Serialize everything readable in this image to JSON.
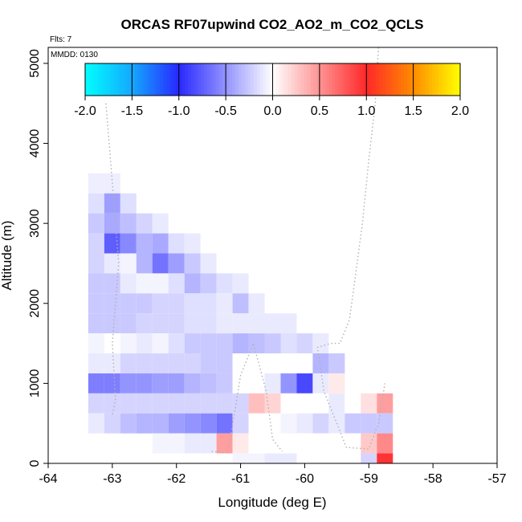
{
  "chart_data": {
    "type": "heatmap",
    "title": "ORCAS RF07upwind CO2_AO2_m_CO2_QCLS",
    "flights_label": "Flts: 7",
    "mmdd_label": "MMDD: 0130",
    "xlabel": "Longitude (deg E)",
    "ylabel": "Altitude (m)",
    "xlim": [
      -64,
      -57
    ],
    "ylim": [
      0,
      5200
    ],
    "x_ticks": [
      -64,
      -63,
      -62,
      -61,
      -60,
      -59,
      -58,
      -57
    ],
    "x_tick_labels": [
      "-64",
      "-63",
      "-62",
      "-61",
      "-60",
      "-59",
      "-58",
      "-57"
    ],
    "y_ticks": [
      0,
      1000,
      2000,
      3000,
      4000,
      5000
    ],
    "y_tick_labels": [
      "0",
      "1000",
      "2000",
      "3000",
      "4000",
      "5000"
    ],
    "cell_size": {
      "dlon": 0.25,
      "dalt": 250
    },
    "colorbar": {
      "min": -2.0,
      "max": 2.0,
      "ticks": [
        -2.0,
        -1.5,
        -1.0,
        -0.5,
        0.0,
        0.5,
        1.0,
        1.5,
        2.0
      ],
      "tick_labels": [
        "-2.0",
        "-1.5",
        "-1.0",
        "-0.5",
        "0.0",
        "0.5",
        "1.0",
        "1.5",
        "2.0"
      ],
      "stops": [
        {
          "v": -2.0,
          "c": "#00ffff"
        },
        {
          "v": -1.5,
          "c": "#14a8ff"
        },
        {
          "v": -1.0,
          "c": "#2828ff"
        },
        {
          "v": 0.0,
          "c": "#ffffff"
        },
        {
          "v": 1.0,
          "c": "#ff2828"
        },
        {
          "v": 1.5,
          "c": "#ff8c00"
        },
        {
          "v": 2.0,
          "c": "#ffff00"
        }
      ]
    },
    "cells": [
      [
        -63.25,
        3500,
        -0.08
      ],
      [
        -63.0,
        3500,
        -0.08
      ],
      [
        -63.25,
        3250,
        -0.15
      ],
      [
        -63.0,
        3250,
        -0.45
      ],
      [
        -62.75,
        3250,
        -0.15
      ],
      [
        -63.25,
        3000,
        -0.25
      ],
      [
        -63.0,
        3000,
        -0.4
      ],
      [
        -62.75,
        3000,
        -0.3
      ],
      [
        -62.5,
        3000,
        -0.2
      ],
      [
        -62.25,
        3000,
        -0.1
      ],
      [
        -63.25,
        2750,
        -0.2
      ],
      [
        -63.0,
        2750,
        -0.75
      ],
      [
        -62.75,
        2750,
        -0.55
      ],
      [
        -62.5,
        2750,
        -0.35
      ],
      [
        -62.25,
        2750,
        -0.4
      ],
      [
        -62.0,
        2750,
        -0.15
      ],
      [
        -61.75,
        2750,
        -0.1
      ],
      [
        -63.25,
        2500,
        -0.2
      ],
      [
        -63.0,
        2500,
        -0.1
      ],
      [
        -62.75,
        2500,
        -0.05
      ],
      [
        -62.5,
        2500,
        -0.35
      ],
      [
        -62.25,
        2500,
        -0.65
      ],
      [
        -62.0,
        2500,
        -0.45
      ],
      [
        -61.75,
        2500,
        -0.25
      ],
      [
        -61.5,
        2500,
        -0.1
      ],
      [
        -63.25,
        2250,
        -0.25
      ],
      [
        -63.0,
        2250,
        -0.25
      ],
      [
        -62.75,
        2250,
        -0.1
      ],
      [
        -62.5,
        2250,
        -0.05
      ],
      [
        -62.25,
        2250,
        -0.05
      ],
      [
        -62.0,
        2250,
        -0.15
      ],
      [
        -61.75,
        2250,
        -0.35
      ],
      [
        -61.5,
        2250,
        -0.25
      ],
      [
        -61.25,
        2250,
        -0.15
      ],
      [
        -61.0,
        2250,
        -0.1
      ],
      [
        -63.25,
        2000,
        -0.25
      ],
      [
        -63.0,
        2000,
        -0.25
      ],
      [
        -62.75,
        2000,
        -0.25
      ],
      [
        -62.5,
        2000,
        -0.25
      ],
      [
        -62.25,
        2000,
        -0.2
      ],
      [
        -62.0,
        2000,
        -0.2
      ],
      [
        -61.75,
        2000,
        -0.15
      ],
      [
        -61.5,
        2000,
        -0.15
      ],
      [
        -61.25,
        2000,
        -0.1
      ],
      [
        -61.0,
        2000,
        -0.3
      ],
      [
        -60.75,
        2000,
        -0.1
      ],
      [
        -63.25,
        1750,
        -0.25
      ],
      [
        -63.0,
        1750,
        -0.25
      ],
      [
        -62.75,
        1750,
        -0.25
      ],
      [
        -62.5,
        1750,
        -0.2
      ],
      [
        -62.25,
        1750,
        -0.2
      ],
      [
        -62.0,
        1750,
        -0.2
      ],
      [
        -61.75,
        1750,
        -0.15
      ],
      [
        -61.5,
        1750,
        -0.15
      ],
      [
        -61.25,
        1750,
        -0.1
      ],
      [
        -61.0,
        1750,
        -0.1
      ],
      [
        -60.75,
        1750,
        -0.1
      ],
      [
        -60.5,
        1750,
        -0.1
      ],
      [
        -60.25,
        1750,
        -0.1
      ],
      [
        -63.25,
        1500,
        -0.05
      ],
      [
        -63.0,
        1500,
        0.0
      ],
      [
        -62.75,
        1500,
        -0.05
      ],
      [
        -62.5,
        1500,
        -0.1
      ],
      [
        -62.25,
        1500,
        -0.05
      ],
      [
        -62.0,
        1500,
        -0.15
      ],
      [
        -61.75,
        1500,
        -0.25
      ],
      [
        -61.5,
        1500,
        -0.25
      ],
      [
        -61.25,
        1500,
        -0.25
      ],
      [
        -61.0,
        1500,
        -0.35
      ],
      [
        -60.75,
        1500,
        -0.3
      ],
      [
        -60.5,
        1500,
        -0.25
      ],
      [
        -60.25,
        1500,
        -0.15
      ],
      [
        -60.0,
        1500,
        -0.2
      ],
      [
        -59.75,
        1500,
        -0.1
      ],
      [
        -63.25,
        1250,
        -0.1
      ],
      [
        -63.0,
        1250,
        -0.1
      ],
      [
        -62.75,
        1250,
        -0.2
      ],
      [
        -62.5,
        1250,
        -0.2
      ],
      [
        -62.25,
        1250,
        -0.2
      ],
      [
        -62.0,
        1250,
        -0.2
      ],
      [
        -61.75,
        1250,
        -0.2
      ],
      [
        -61.5,
        1250,
        -0.25
      ],
      [
        -61.25,
        1250,
        -0.25
      ],
      [
        -61.0,
        1250,
        0.0
      ],
      [
        -60.75,
        1250,
        0.0
      ],
      [
        -60.5,
        1250,
        0.0
      ],
      [
        -60.25,
        1250,
        0.0
      ],
      [
        -60.0,
        1250,
        0.0
      ],
      [
        -59.75,
        1250,
        -0.35
      ],
      [
        -59.5,
        1250,
        -0.25
      ],
      [
        -63.25,
        1000,
        -0.6
      ],
      [
        -63.0,
        1000,
        -0.6
      ],
      [
        -62.75,
        1000,
        -0.5
      ],
      [
        -62.5,
        1000,
        -0.5
      ],
      [
        -62.25,
        1000,
        -0.45
      ],
      [
        -62.0,
        1000,
        -0.45
      ],
      [
        -61.75,
        1000,
        -0.35
      ],
      [
        -61.5,
        1000,
        -0.3
      ],
      [
        -61.25,
        1000,
        -0.25
      ],
      [
        -61.0,
        1000,
        0.0
      ],
      [
        -60.75,
        1000,
        0.0
      ],
      [
        -60.5,
        1000,
        -0.1
      ],
      [
        -60.25,
        1000,
        -0.5
      ],
      [
        -60.0,
        1000,
        -0.85
      ],
      [
        -59.75,
        1000,
        -0.1
      ],
      [
        -59.5,
        1000,
        0.1
      ],
      [
        -63.25,
        750,
        -0.2
      ],
      [
        -63.0,
        750,
        -0.2
      ],
      [
        -62.75,
        750,
        -0.2
      ],
      [
        -62.5,
        750,
        -0.2
      ],
      [
        -62.25,
        750,
        -0.2
      ],
      [
        -62.0,
        750,
        -0.2
      ],
      [
        -61.75,
        750,
        -0.2
      ],
      [
        -61.5,
        750,
        -0.2
      ],
      [
        -61.25,
        750,
        -0.2
      ],
      [
        -61.0,
        750,
        -0.2
      ],
      [
        -60.75,
        750,
        0.3
      ],
      [
        -60.5,
        750,
        0.2
      ],
      [
        -60.25,
        750,
        0.0
      ],
      [
        -60.0,
        750,
        0.0
      ],
      [
        -59.75,
        750,
        0.0
      ],
      [
        -59.5,
        750,
        -0.1
      ],
      [
        -59.25,
        750,
        0.0
      ],
      [
        -59.0,
        750,
        0.15
      ],
      [
        -58.75,
        750,
        0.45
      ],
      [
        -63.25,
        500,
        -0.1
      ],
      [
        -63.0,
        500,
        -0.2
      ],
      [
        -62.75,
        500,
        -0.3
      ],
      [
        -62.5,
        500,
        -0.35
      ],
      [
        -62.25,
        500,
        -0.35
      ],
      [
        -62.0,
        500,
        -0.45
      ],
      [
        -61.75,
        500,
        -0.5
      ],
      [
        -61.5,
        500,
        -0.55
      ],
      [
        -61.25,
        500,
        -0.65
      ],
      [
        -61.0,
        500,
        -0.2
      ],
      [
        -60.75,
        500,
        0.0
      ],
      [
        -60.5,
        500,
        0.0
      ],
      [
        -60.25,
        500,
        -0.05
      ],
      [
        -60.0,
        500,
        -0.1
      ],
      [
        -59.75,
        500,
        -0.2
      ],
      [
        -59.5,
        500,
        -0.1
      ],
      [
        -59.25,
        500,
        -0.25
      ],
      [
        -59.0,
        500,
        -0.25
      ],
      [
        -58.75,
        500,
        -0.25
      ],
      [
        -62.25,
        250,
        -0.05
      ],
      [
        -62.0,
        250,
        -0.05
      ],
      [
        -61.75,
        250,
        -0.1
      ],
      [
        -61.5,
        250,
        -0.1
      ],
      [
        -61.25,
        250,
        0.45
      ],
      [
        -61.0,
        250,
        0.1
      ],
      [
        -60.75,
        250,
        0.0
      ],
      [
        -60.5,
        250,
        0.0
      ],
      [
        -60.25,
        250,
        0.0
      ],
      [
        -60.0,
        250,
        0.0
      ],
      [
        -59.75,
        250,
        0.0
      ],
      [
        -59.5,
        250,
        0.0
      ],
      [
        -59.25,
        250,
        0.0
      ],
      [
        -59.0,
        250,
        0.25
      ],
      [
        -58.75,
        250,
        0.55
      ],
      [
        -61.25,
        0,
        0.0
      ],
      [
        -61.0,
        0,
        -0.05
      ],
      [
        -60.75,
        0,
        -0.05
      ],
      [
        -60.5,
        0,
        -0.1
      ],
      [
        -60.25,
        0,
        -0.1
      ],
      [
        -60.0,
        0,
        0.0
      ],
      [
        -59.75,
        0,
        0.0
      ],
      [
        -59.5,
        0,
        0.0
      ],
      [
        -59.25,
        0,
        0.0
      ],
      [
        -59.0,
        0,
        -0.2
      ],
      [
        -58.75,
        0,
        0.95
      ]
    ],
    "flight_tracks": [
      [
        [
          -63.1,
          4500
        ],
        [
          -63.0,
          3500
        ],
        [
          -62.9,
          2500
        ],
        [
          -63.0,
          1500
        ],
        [
          -62.95,
          800
        ],
        [
          -63.0,
          600
        ]
      ],
      [
        [
          -61.45,
          150
        ],
        [
          -61.2,
          130
        ],
        [
          -61.1,
          600
        ],
        [
          -61.0,
          1100
        ],
        [
          -60.8,
          1500
        ],
        [
          -60.6,
          900
        ],
        [
          -60.5,
          300
        ],
        [
          -60.35,
          150
        ]
      ],
      [
        [
          -58.85,
          5200
        ],
        [
          -58.9,
          4500
        ],
        [
          -59.0,
          3800
        ],
        [
          -59.1,
          3000
        ],
        [
          -59.2,
          2400
        ],
        [
          -59.3,
          1800
        ],
        [
          -59.45,
          1500
        ],
        [
          -59.6,
          1500
        ],
        [
          -59.8,
          1450
        ],
        [
          -59.7,
          900
        ],
        [
          -59.5,
          500
        ],
        [
          -59.35,
          200
        ],
        [
          -59.0,
          180
        ],
        [
          -58.85,
          500
        ],
        [
          -58.75,
          1000
        ]
      ]
    ]
  }
}
